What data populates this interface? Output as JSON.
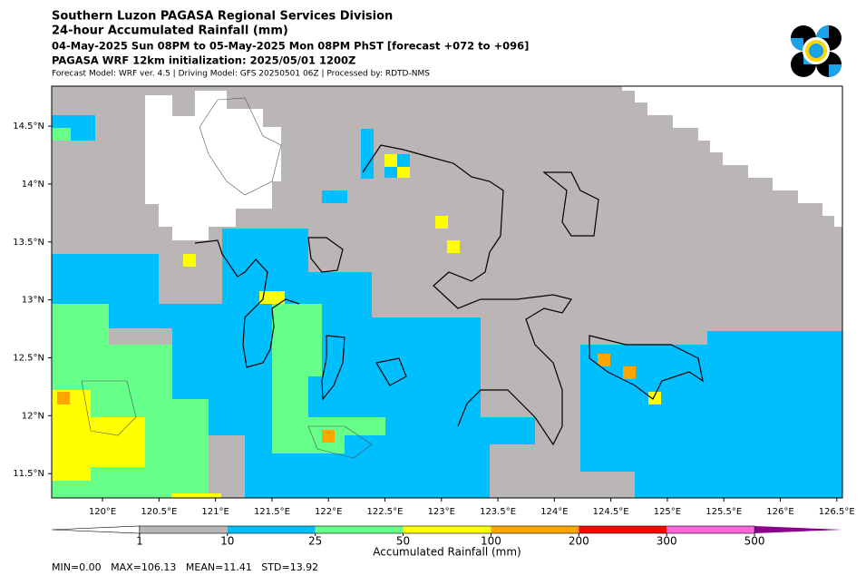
{
  "header": {
    "title": "Southern Luzon PAGASA Regional Services Division",
    "subtitle": "24-hour Accumulated Rainfall (mm)",
    "period": "04-May-2025 Sun 08PM to 05-May-2025 Mon 08PM PhST [forecast +072 to +096]",
    "initialization": "PAGASA WRF 12km initialization: 2025/05/01 1200Z",
    "model_info": "Forecast Model: WRF ver. 4.5 | Driving Model: GFS 20250501 06Z | Processed by: RDTD-NMS"
  },
  "map": {
    "xlim": [
      119.55,
      126.55
    ],
    "ylim": [
      11.29,
      14.845
    ],
    "xticks": [
      {
        "value": 120,
        "label": "120°E"
      },
      {
        "value": 120.5,
        "label": "120.5°E"
      },
      {
        "value": 121,
        "label": "121°E"
      },
      {
        "value": 121.5,
        "label": "121.5°E"
      },
      {
        "value": 122,
        "label": "122°E"
      },
      {
        "value": 122.5,
        "label": "122.5°E"
      },
      {
        "value": 123,
        "label": "123°E"
      },
      {
        "value": 123.5,
        "label": "123.5°E"
      },
      {
        "value": 124,
        "label": "124°E"
      },
      {
        "value": 124.5,
        "label": "124.5°E"
      },
      {
        "value": 125,
        "label": "125°E"
      },
      {
        "value": 125.5,
        "label": "125.5°E"
      },
      {
        "value": 126,
        "label": "126°E"
      },
      {
        "value": 126.5,
        "label": "126.5°E"
      }
    ],
    "yticks": [
      {
        "value": 11.5,
        "label": "11.5°N"
      },
      {
        "value": 12,
        "label": "12°N"
      },
      {
        "value": 12.5,
        "label": "12.5°N"
      },
      {
        "value": 13,
        "label": "13°N"
      },
      {
        "value": 13.5,
        "label": "13.5°N"
      },
      {
        "value": 14,
        "label": "14°N"
      },
      {
        "value": 14.5,
        "label": "14.5°N"
      }
    ]
  },
  "colorbar": {
    "label": "Accumulated Rainfall (mm)",
    "boundaries": [
      1,
      10,
      25,
      50,
      100,
      200,
      300,
      500
    ],
    "colors": [
      "#bab6b6",
      "#00bfff",
      "#66ff88",
      "#ffff00",
      "#ffa500",
      "#ff0000",
      "#ff66dd"
    ],
    "under_color": "#ffffff",
    "over_color": "#8b008b"
  },
  "stats": "MIN=0.00   MAX=106.13   MEAN=11.41   STD=13.92"
}
